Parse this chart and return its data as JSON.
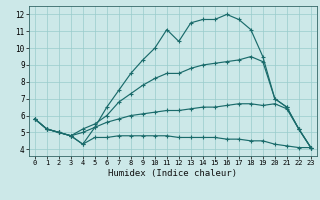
{
  "xlabel": "Humidex (Indice chaleur)",
  "ylabel": "",
  "bg_color": "#cce8e8",
  "grid_color": "#99cccc",
  "line_color": "#1a6b6b",
  "xlim": [
    -0.5,
    23.5
  ],
  "ylim": [
    3.6,
    12.5
  ],
  "xticks": [
    0,
    1,
    2,
    3,
    4,
    5,
    6,
    7,
    8,
    9,
    10,
    11,
    12,
    13,
    14,
    15,
    16,
    17,
    18,
    19,
    20,
    21,
    22,
    23
  ],
  "yticks": [
    4,
    5,
    6,
    7,
    8,
    9,
    10,
    11,
    12
  ],
  "series": {
    "line1": [
      5.8,
      5.2,
      5.0,
      4.8,
      4.3,
      5.3,
      6.5,
      7.5,
      8.5,
      9.3,
      10.0,
      11.1,
      10.4,
      11.5,
      11.7,
      11.7,
      12.0,
      11.7,
      11.1,
      9.5,
      7.0,
      6.5,
      5.2,
      4.1
    ],
    "line2": [
      5.8,
      5.2,
      5.0,
      4.8,
      5.2,
      5.5,
      6.0,
      6.8,
      7.3,
      7.8,
      8.2,
      8.5,
      8.5,
      8.8,
      9.0,
      9.1,
      9.2,
      9.3,
      9.5,
      9.2,
      7.0,
      6.5,
      5.2,
      4.1
    ],
    "line3": [
      5.8,
      5.2,
      5.0,
      4.8,
      5.0,
      5.3,
      5.6,
      5.8,
      6.0,
      6.1,
      6.2,
      6.3,
      6.3,
      6.4,
      6.5,
      6.5,
      6.6,
      6.7,
      6.7,
      6.6,
      6.7,
      6.4,
      5.2,
      4.1
    ],
    "line4": [
      5.8,
      5.2,
      5.0,
      4.8,
      4.3,
      4.7,
      4.7,
      4.8,
      4.8,
      4.8,
      4.8,
      4.8,
      4.7,
      4.7,
      4.7,
      4.7,
      4.6,
      4.6,
      4.5,
      4.5,
      4.3,
      4.2,
      4.1,
      4.1
    ]
  }
}
